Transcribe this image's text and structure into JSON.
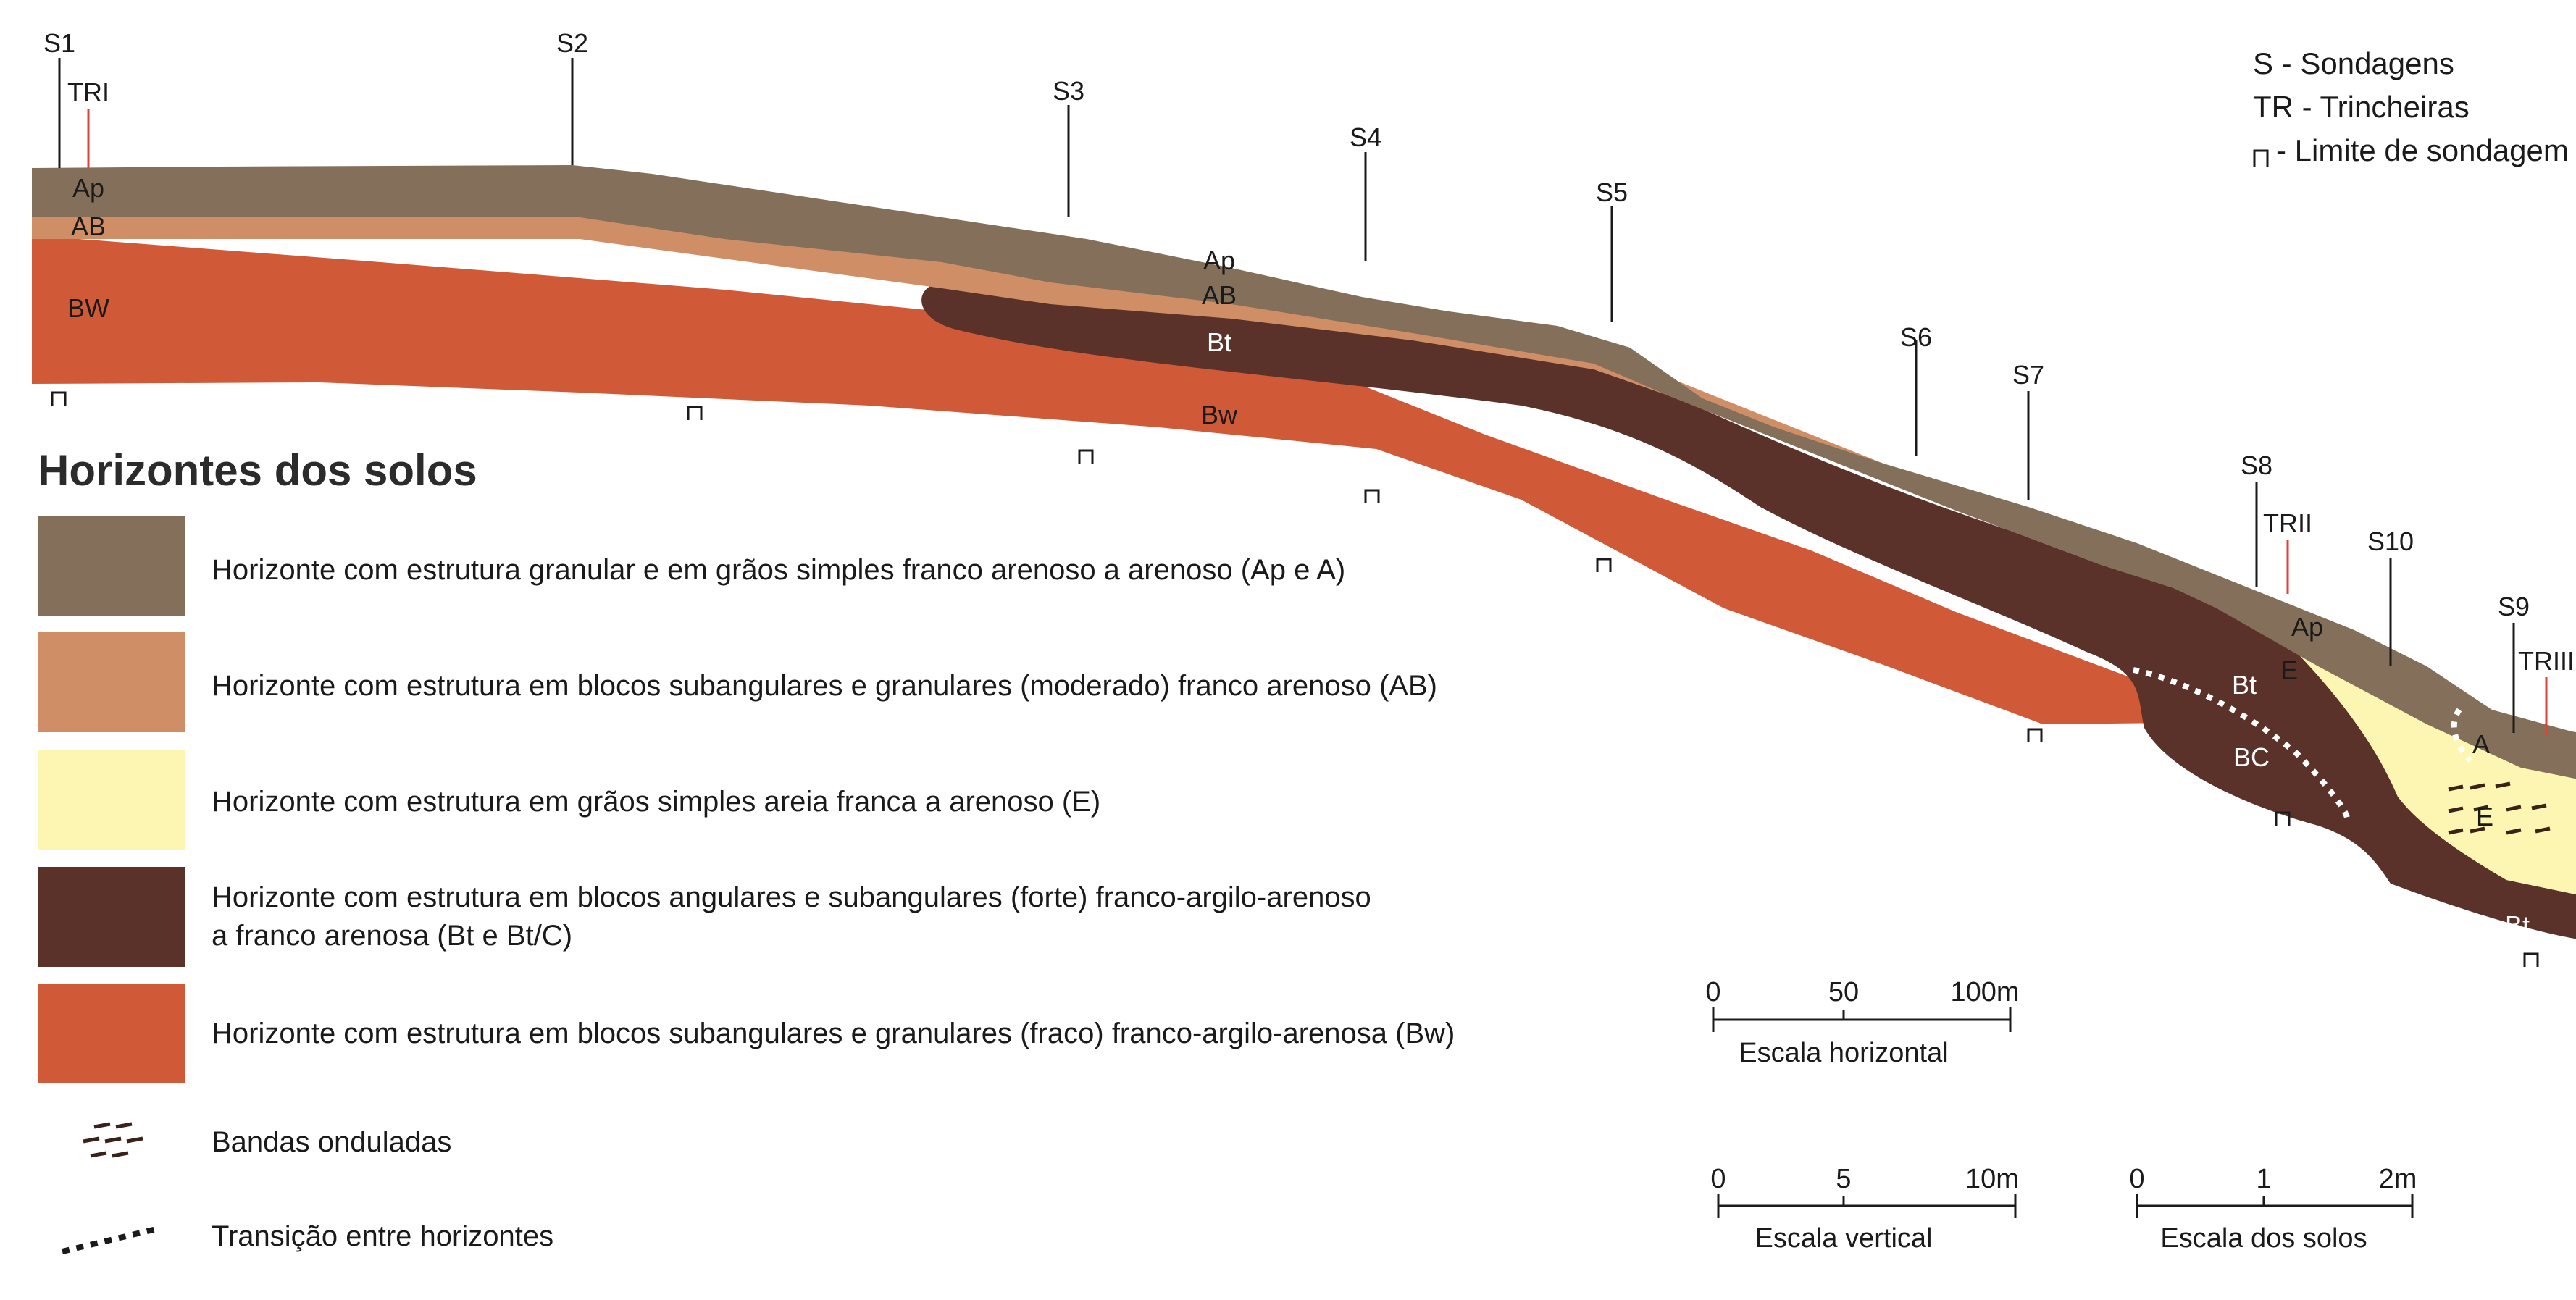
{
  "key": {
    "sondagens": "S - Sondagens",
    "trincheiras": "TR - Trincheiras",
    "limite": "- Limite de sondagem"
  },
  "probes": [
    "S1",
    "S2",
    "S3",
    "S4",
    "S5",
    "S6",
    "S7",
    "S8",
    "S10",
    "S9"
  ],
  "trenches": [
    "TRI",
    "TRII",
    "TRIII"
  ],
  "horizon_labels": {
    "ap1": "Ap",
    "ab1": "AB",
    "bw1": "BW",
    "ap2": "Ap",
    "ab2": "AB",
    "bt2": "Bt",
    "bw2": "Bw",
    "ap3": "Ap",
    "e3": "E",
    "bt3": "Bt",
    "bc3": "BC",
    "a4": "A",
    "e4": "E",
    "bt4": "Bt"
  },
  "legend": {
    "title": "Horizontes dos solos",
    "items": [
      {
        "color": "#84705a",
        "text": "Horizonte com estrutura granular e em grãos simples franco arenoso a arenoso (Ap e A)"
      },
      {
        "color": "#d08e66",
        "text": "Horizonte com estrutura em blocos subangulares e granulares (moderado) franco arenoso (AB)"
      },
      {
        "color": "#fdf6b2",
        "text": "Horizonte com estrutura em grãos simples areia franca a arenoso (E)"
      },
      {
        "color": "#5a322a",
        "text": "Horizonte com estrutura em blocos angulares e subangulares (forte) franco-argilo-arenoso",
        "text2": "a franco arenosa (Bt e Bt/C)"
      },
      {
        "color": "#d05a38",
        "text": "Horizonte com estrutura em blocos subangulares e granulares (fraco) franco-argilo-arenosa (Bw)"
      }
    ],
    "bandas": "Bandas onduladas",
    "transicao": "Transição entre horizontes"
  },
  "scales": {
    "horizontal": {
      "ticks": [
        "0",
        "50",
        "100m"
      ],
      "label": "Escala horizontal"
    },
    "vertical": {
      "ticks": [
        "0",
        "5",
        "10m"
      ],
      "label": "Escala vertical"
    },
    "solos": {
      "ticks": [
        "0",
        "1",
        "2m"
      ],
      "label": "Escala dos solos"
    }
  }
}
